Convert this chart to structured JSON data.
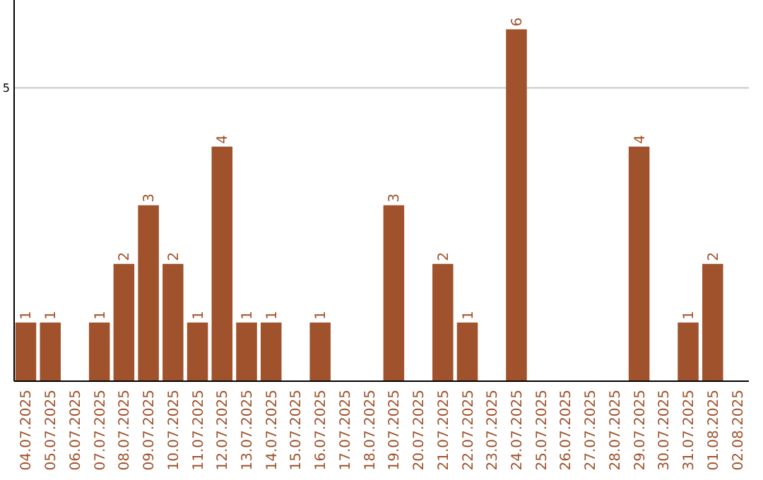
{
  "chart_data": {
    "type": "bar",
    "categories": [
      "04.07.2025",
      "05.07.2025",
      "06.07.2025",
      "07.07.2025",
      "08.07.2025",
      "09.07.2025",
      "10.07.2025",
      "11.07.2025",
      "12.07.2025",
      "13.07.2025",
      "14.07.2025",
      "15.07.2025",
      "16.07.2025",
      "17.07.2025",
      "18.07.2025",
      "19.07.2025",
      "20.07.2025",
      "21.07.2025",
      "22.07.2025",
      "23.07.2025",
      "24.07.2025",
      "25.07.2025",
      "26.07.2025",
      "27.07.2025",
      "28.07.2025",
      "29.07.2025",
      "30.07.2025",
      "31.07.2025",
      "01.08.2025",
      "02.08.2025"
    ],
    "values": [
      1,
      1,
      0,
      1,
      2,
      3,
      2,
      1,
      4,
      1,
      1,
      0,
      1,
      0,
      0,
      3,
      0,
      2,
      1,
      0,
      6,
      0,
      0,
      0,
      0,
      4,
      0,
      1,
      2,
      0
    ],
    "value_labels": [
      "1",
      "1",
      null,
      "1",
      "2",
      "3",
      "2",
      "1",
      "4",
      "1",
      "1",
      null,
      "1",
      null,
      null,
      "3",
      null,
      "2",
      "1",
      null,
      "6",
      null,
      null,
      null,
      null,
      "4",
      null,
      "1",
      "2",
      null
    ],
    "color": "#a0522d",
    "ylim": [
      0,
      6.5
    ],
    "yticks": [
      5
    ],
    "grid": "y"
  }
}
